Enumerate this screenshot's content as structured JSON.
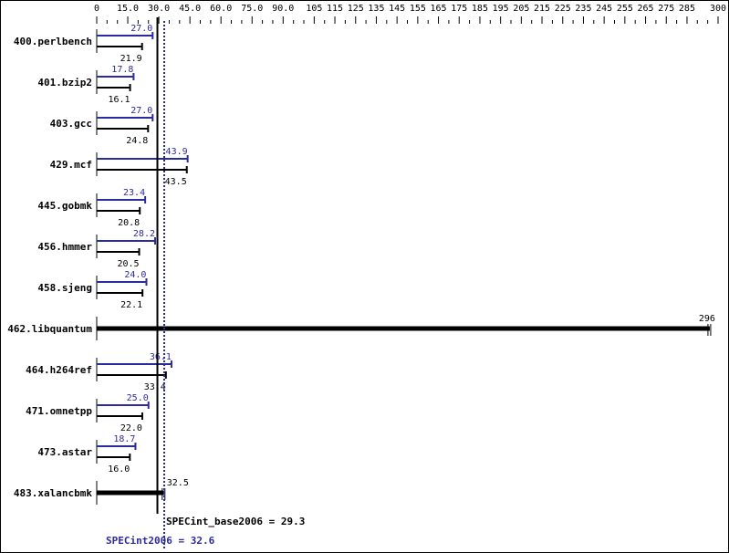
{
  "chart_data": {
    "type": "bar",
    "orientation": "horizontal",
    "title": "",
    "xlabel": "",
    "ylabel": "",
    "xlim": [
      0,
      300
    ],
    "x_ticks": [
      "0",
      "15.0",
      "30.0",
      "45.0",
      "60.0",
      "75.0",
      "90.0",
      "105",
      "115",
      "125",
      "135",
      "145",
      "155",
      "165",
      "175",
      "185",
      "195",
      "205",
      "215",
      "225",
      "235",
      "245",
      "255",
      "265",
      "275",
      "285",
      "300"
    ],
    "x_tick_values": [
      0,
      15,
      30,
      45,
      60,
      75,
      90,
      105,
      115,
      125,
      135,
      145,
      155,
      165,
      175,
      185,
      195,
      205,
      215,
      225,
      235,
      245,
      255,
      265,
      275,
      285,
      300
    ],
    "categories": [
      "400.perlbench",
      "401.bzip2",
      "403.gcc",
      "429.mcf",
      "445.gobmk",
      "456.hmmer",
      "458.sjeng",
      "462.libquantum",
      "464.h264ref",
      "471.omnetpp",
      "473.astar",
      "483.xalancbmk"
    ],
    "series": [
      {
        "name": "SPECint2006 (peak)",
        "color": "#2b2ba0",
        "values": [
          27.0,
          17.8,
          27.0,
          43.9,
          23.4,
          28.2,
          24.0,
          null,
          36.1,
          25.0,
          18.7,
          null
        ]
      },
      {
        "name": "SPECint_base2006 (base)",
        "color": "#000000",
        "values": [
          21.9,
          16.1,
          24.8,
          43.5,
          20.8,
          20.5,
          22.1,
          null,
          33.4,
          22.0,
          16.0,
          null
        ]
      }
    ],
    "combined": [
      {
        "category": "462.libquantum",
        "value": 296,
        "label": "296"
      },
      {
        "category": "483.xalancbmk",
        "value": 32.5,
        "label": "32.5"
      }
    ],
    "peak_labels": [
      "27.0",
      "17.8",
      "27.0",
      "43.9",
      "23.4",
      "28.2",
      "24.0",
      "",
      "36.1",
      "25.0",
      "18.7",
      ""
    ],
    "base_labels": [
      "21.9",
      "16.1",
      "24.8",
      "43.5",
      "20.8",
      "20.5",
      "22.1",
      "",
      "33.4",
      "22.0",
      "16.0",
      ""
    ],
    "reference_lines": [
      {
        "name": "SPECint_base2006",
        "value": 29.3,
        "style": "solid",
        "color": "#000000",
        "label": "SPECint_base2006 = 29.3"
      },
      {
        "name": "SPECint2006",
        "value": 32.6,
        "style": "dotted",
        "color": "#2b2ba0",
        "label": "SPECint2006 = 32.6"
      }
    ],
    "grid": false,
    "legend": "none"
  },
  "summary": {
    "base_label": "SPECint_base2006 = 29.3",
    "peak_label": "SPECint2006 = 32.6"
  },
  "colors": {
    "peak": "#2b2ba0",
    "base": "#000000",
    "background": "#ffffff"
  }
}
